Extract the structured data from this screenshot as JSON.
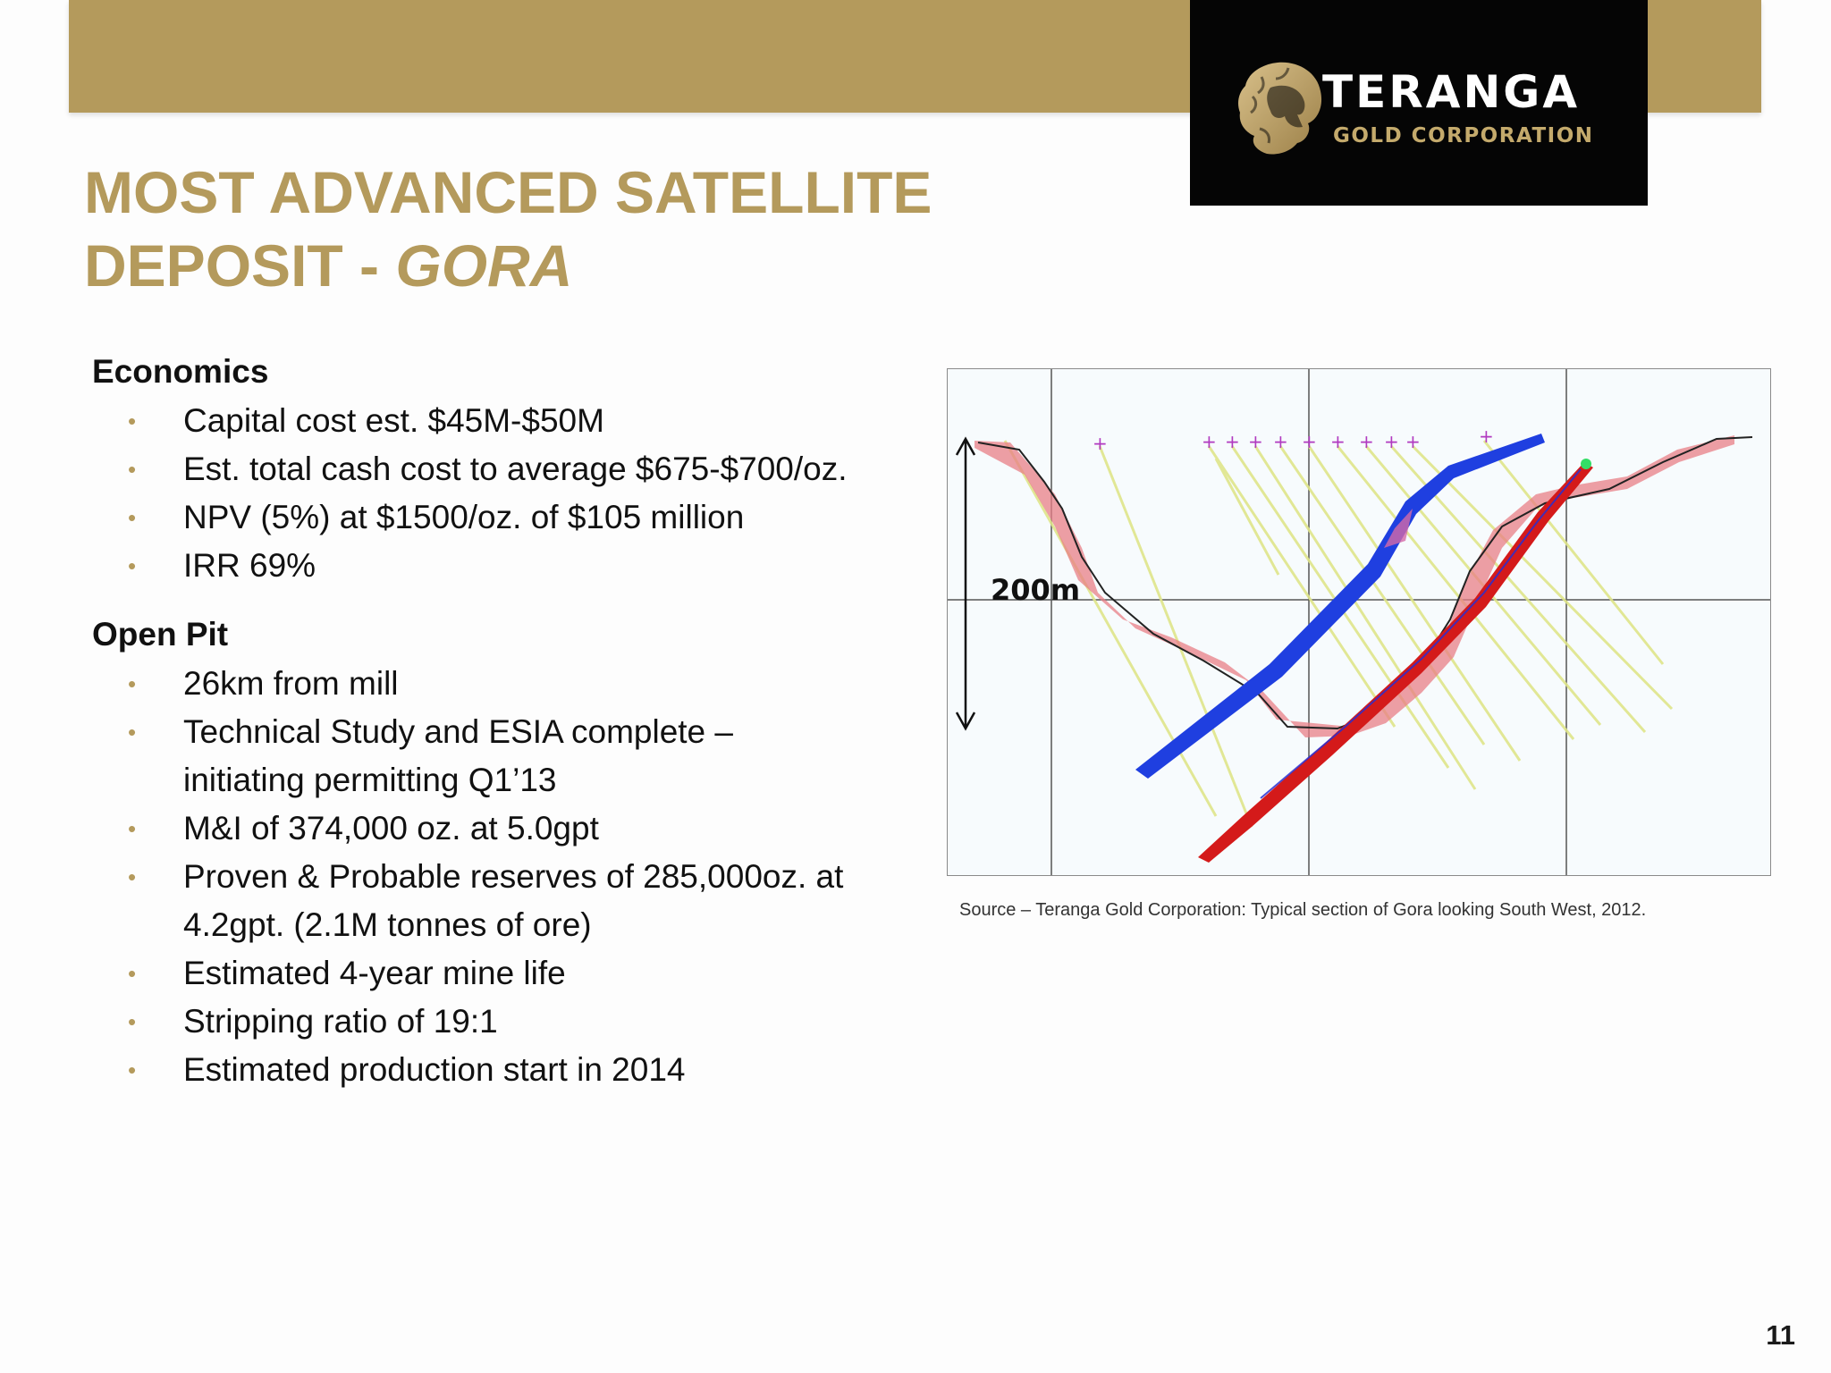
{
  "header": {
    "logo": {
      "wordmark": "TERANGA",
      "subtitle": "GOLD CORPORATION"
    }
  },
  "title": {
    "line1": "MOST ADVANCED SATELLITE",
    "line2_prefix": "DEPOSIT - ",
    "line2_italic": "GORA"
  },
  "economics": {
    "heading": "Economics",
    "bullets": [
      "Capital cost est. $45M-$50M",
      "Est. total cash cost to average $675-$700/oz.",
      "NPV (5%) at $1500/oz. of $105 million",
      "IRR 69%"
    ]
  },
  "open_pit": {
    "heading": "Open Pit",
    "bullets": [
      "26km from mill",
      "Technical Study and ESIA complete –",
      "initiating permitting Q1’13",
      "M&I of 374,000 oz. at 5.0gpt",
      "Proven & Probable reserves of 285,000oz. at",
      "4.2gpt. (2.1M tonnes of ore)",
      "Estimated 4-year mine life",
      "Stripping ratio of 19:1",
      "Estimated production start in 2014"
    ]
  },
  "figure": {
    "scale_label": "200m",
    "caption": "Source – Teranga Gold Corporation: Typical section of Gora looking South West,  2012."
  },
  "page_number": "11",
  "colors": {
    "gold": "#b49a5c",
    "logo_background": "#050505",
    "ore_blue": "#1f3fe0",
    "ore_red": "#d41a1a",
    "pit_pink": "#e87f86"
  }
}
